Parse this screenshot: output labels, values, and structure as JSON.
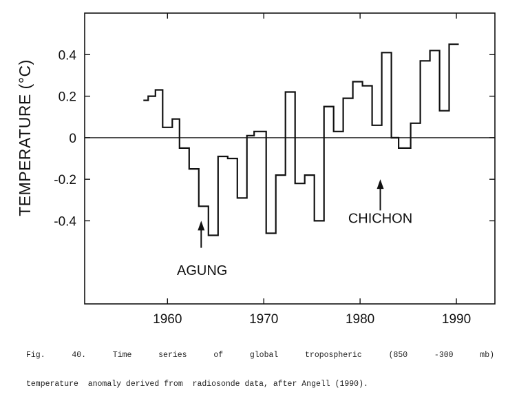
{
  "caption": {
    "line1": "Fig.   40.   Time   series   of   global   tropospheric   (850   -300   mb)",
    "line2": "temperature  anomaly derived from  radiosonde data, after Angell (1990)."
  },
  "chart_data": {
    "type": "line",
    "step": true,
    "title": "",
    "xlabel": "",
    "ylabel": "TEMPERATURE (°C)",
    "xlim": [
      1951.4,
      1994.0
    ],
    "ylim": [
      -0.8,
      0.6
    ],
    "x_ticks": [
      1960,
      1970,
      1980,
      1990
    ],
    "x_tick_labels": [
      "1960",
      "1970",
      "1980",
      "1990"
    ],
    "y_ticks": [
      -0.4,
      -0.2,
      0,
      0.2,
      0.4
    ],
    "y_tick_labels": [
      "-0.4",
      "-0.2",
      "0",
      "0.2",
      "0.4"
    ],
    "zero_line": true,
    "grid": false,
    "series": [
      {
        "values": [
          {
            "x": 1957.5,
            "y": 0.18
          },
          {
            "x": 1958.0,
            "y": 0.2
          },
          {
            "x": 1958.75,
            "y": 0.23
          },
          {
            "x": 1959.5,
            "y": 0.05
          },
          {
            "x": 1960.5,
            "y": 0.09
          },
          {
            "x": 1961.25,
            "y": -0.05
          },
          {
            "x": 1962.25,
            "y": -0.15
          },
          {
            "x": 1963.25,
            "y": -0.33
          },
          {
            "x": 1964.25,
            "y": -0.47
          },
          {
            "x": 1965.25,
            "y": -0.09
          },
          {
            "x": 1966.25,
            "y": -0.1
          },
          {
            "x": 1967.25,
            "y": -0.29
          },
          {
            "x": 1968.25,
            "y": 0.01
          },
          {
            "x": 1969.0,
            "y": 0.03
          },
          {
            "x": 1970.25,
            "y": -0.46
          },
          {
            "x": 1971.25,
            "y": -0.18
          },
          {
            "x": 1972.25,
            "y": 0.22
          },
          {
            "x": 1973.25,
            "y": -0.22
          },
          {
            "x": 1974.25,
            "y": -0.18
          },
          {
            "x": 1975.25,
            "y": -0.4
          },
          {
            "x": 1976.25,
            "y": 0.15
          },
          {
            "x": 1977.25,
            "y": 0.03
          },
          {
            "x": 1978.25,
            "y": 0.19
          },
          {
            "x": 1979.25,
            "y": 0.27
          },
          {
            "x": 1980.25,
            "y": 0.25
          },
          {
            "x": 1981.25,
            "y": 0.06
          },
          {
            "x": 1982.25,
            "y": 0.41
          },
          {
            "x": 1983.25,
            "y": 0.0
          },
          {
            "x": 1984.0,
            "y": -0.05
          },
          {
            "x": 1985.25,
            "y": 0.07
          },
          {
            "x": 1986.25,
            "y": 0.37
          },
          {
            "x": 1987.25,
            "y": 0.42
          },
          {
            "x": 1988.25,
            "y": 0.13
          },
          {
            "x": 1989.25,
            "y": 0.45
          }
        ],
        "end_x": 1990.25
      }
    ],
    "annotations": [
      {
        "text": "AGUNG",
        "arrow_x": 1963.5,
        "arrow_y_from": -0.53,
        "arrow_y_to": -0.4,
        "text_x": 1963.6,
        "text_y": -0.66
      },
      {
        "text": "CHICHON",
        "arrow_x": 1982.1,
        "arrow_y_from": -0.35,
        "arrow_y_to": -0.2,
        "text_x": 1982.1,
        "text_y": -0.41
      }
    ]
  }
}
